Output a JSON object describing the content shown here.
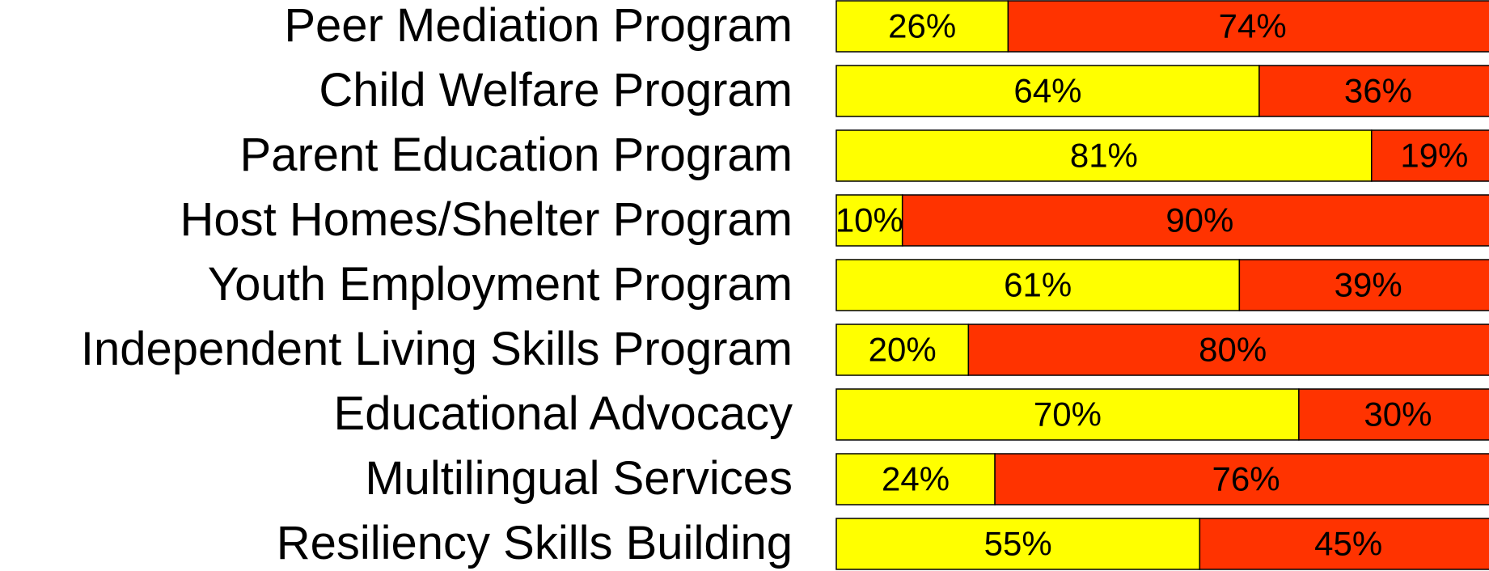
{
  "chart_data": {
    "type": "bar",
    "orientation": "horizontal",
    "stacked": true,
    "categories": [
      "Peer Mediation Program",
      "Child Welfare Program",
      "Parent Education Program",
      "Host Homes/Shelter Program",
      "Youth Employment Program",
      "Independent Living Skills Program",
      "Educational Advocacy",
      "Multilingual Services",
      "Resiliency Skills Building"
    ],
    "series": [
      {
        "color": "#ffff00",
        "values": [
          26,
          64,
          81,
          10,
          61,
          20,
          70,
          24,
          55
        ],
        "value_labels": [
          "26%",
          "64%",
          "81%",
          "10%",
          "61%",
          "20%",
          "70%",
          "24%",
          "55%"
        ]
      },
      {
        "color": "#ff3300",
        "values": [
          74,
          36,
          19,
          90,
          39,
          80,
          30,
          76,
          45
        ],
        "value_labels": [
          "74%",
          "36%",
          "19%",
          "90%",
          "39%",
          "80%",
          "30%",
          "76%",
          "45%"
        ]
      }
    ],
    "xlim": [
      0,
      100
    ]
  }
}
